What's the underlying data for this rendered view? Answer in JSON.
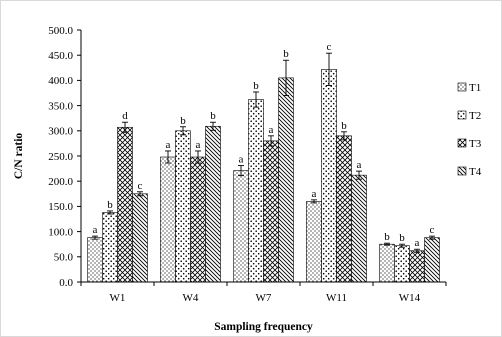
{
  "chart_data": {
    "type": "bar",
    "xlabel": "Sampling frequency",
    "ylabel": "C/N ratio",
    "ylim": [
      0,
      500
    ],
    "yticks": [
      "0.0",
      "50.0",
      "100.0",
      "150.0",
      "200.0",
      "250.0",
      "300.0",
      "350.0",
      "400.0",
      "450.0",
      "500.0"
    ],
    "ytick_values": [
      0,
      50,
      100,
      150,
      200,
      250,
      300,
      350,
      400,
      450,
      500
    ],
    "grid": false,
    "legend_position": "right",
    "categories": [
      "W1",
      "W4",
      "W7",
      "W11",
      "W14"
    ],
    "series": [
      {
        "name": "T1",
        "values": [
          88,
          248,
          221,
          160,
          75
        ],
        "errors": [
          3,
          12,
          10,
          3,
          2
        ],
        "labels": [
          "a",
          "a",
          "a",
          "a",
          "b"
        ]
      },
      {
        "name": "T2",
        "values": [
          138,
          300,
          362,
          422,
          72
        ],
        "errors": [
          3,
          8,
          15,
          32,
          3
        ],
        "labels": [
          "b",
          "b",
          "b",
          "c",
          "b"
        ]
      },
      {
        "name": "T3",
        "values": [
          307,
          248,
          280,
          290,
          62
        ],
        "errors": [
          10,
          12,
          10,
          8,
          3
        ],
        "labels": [
          "d",
          "a",
          "a",
          "b",
          "a"
        ]
      },
      {
        "name": "T4",
        "values": [
          175,
          309,
          405,
          212,
          88
        ],
        "errors": [
          4,
          8,
          35,
          8,
          3
        ],
        "labels": [
          "c",
          "b",
          "b",
          "a",
          "c"
        ]
      }
    ]
  },
  "colors": {
    "axis": "#000000",
    "bar_outline": "#000000",
    "pattern_ink": "#000000",
    "frame": "#d9d9d9"
  }
}
